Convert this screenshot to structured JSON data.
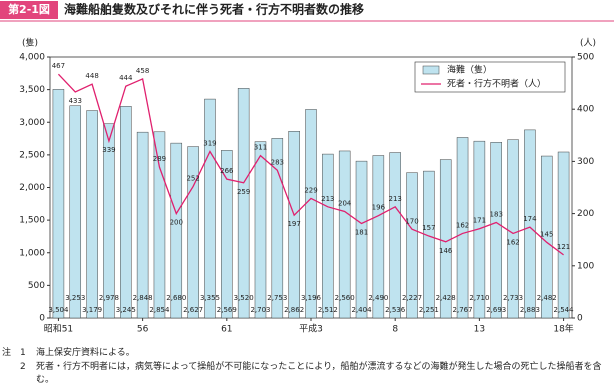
{
  "chart_data": {
    "type": "bar_line",
    "figure_number": "第2-1図",
    "title": "海難船舶隻数及びそれに伴う死者・行方不明者数の推移",
    "y_label": "(隻)",
    "y2_label": "(人)",
    "categories": [
      "昭和51",
      null,
      null,
      null,
      null,
      "56",
      null,
      null,
      null,
      null,
      "61",
      null,
      null,
      null,
      null,
      "平成3",
      null,
      null,
      null,
      null,
      "8",
      null,
      null,
      null,
      null,
      "13",
      null,
      null,
      null,
      null,
      "18年"
    ],
    "series": [
      {
        "name": "海難（隻）",
        "kind": "bar",
        "color": "#bfe3ef",
        "values": [
          3504,
          3253,
          3179,
          2978,
          3245,
          2848,
          2854,
          2680,
          2627,
          3355,
          2569,
          3520,
          2703,
          2753,
          2862,
          3196,
          2512,
          2560,
          2404,
          2490,
          2536,
          2227,
          2251,
          2428,
          2767,
          2710,
          2693,
          2733,
          2883,
          2482,
          2544
        ],
        "value_labels": [
          "3,504",
          "3,253",
          "3,179",
          "2,978",
          "3,245",
          "2,848",
          "2,854",
          "2,680",
          "2,627",
          "3,355",
          "2,569",
          "3,520",
          "2,703",
          "2,753",
          "2,862",
          "3,196",
          "2,512",
          "2,560",
          "2,404",
          "2,490",
          "2,536",
          "2,227",
          "2,251",
          "2,428",
          "2,767",
          "2,710",
          "2,693",
          "2,733",
          "2,883",
          "2,482",
          "2,544"
        ]
      },
      {
        "name": "死者・行方不明者（人）",
        "kind": "line",
        "axis": "y2",
        "color": "#e0206e",
        "values": [
          467,
          433,
          448,
          339,
          444,
          458,
          289,
          200,
          252,
          319,
          266,
          259,
          311,
          283,
          197,
          229,
          213,
          204,
          181,
          196,
          213,
          170,
          157,
          146,
          162,
          171,
          183,
          162,
          174,
          145,
          121
        ]
      }
    ],
    "ylim": [
      0,
      4000
    ],
    "yticks": [
      0,
      500,
      {
        "value": 1000,
        "label": "1,000"
      },
      {
        "value": 1500,
        "label": "1,500"
      },
      {
        "value": 2000,
        "label": "2,000"
      },
      {
        "value": 2500,
        "label": "2,500"
      },
      {
        "value": 3000,
        "label": "3,000"
      },
      {
        "value": 3500,
        "label": "3,500"
      },
      {
        "value": 4000,
        "label": "4,000"
      }
    ],
    "y2lim": [
      0,
      500
    ],
    "y2ticks": [
      0,
      100,
      200,
      300,
      400,
      500
    ],
    "grid": false,
    "legend": "top-right",
    "notes_heading": "注",
    "notes": [
      {
        "number": "1",
        "text": "海上保安庁資料による。"
      },
      {
        "number": "2",
        "text": "死者・行方不明者には，病気等によって操船が不可能になったことにより，船舶が漂流するなどの海難が発生した場合の死亡した操船者を含む。"
      }
    ]
  }
}
